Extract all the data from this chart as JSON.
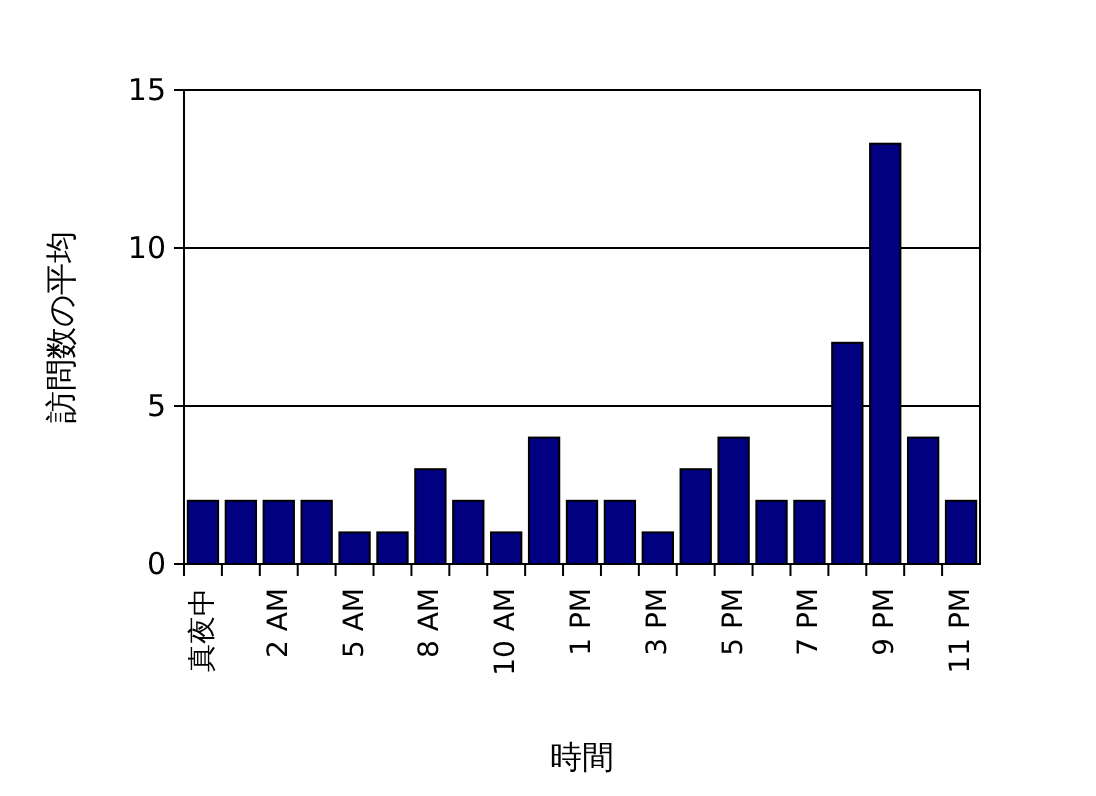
{
  "chart_data": {
    "type": "bar",
    "xlabel": "時間",
    "ylabel": "訪問数の平均",
    "categories": [
      "真夜中",
      null,
      "2 AM",
      null,
      "5 AM",
      null,
      "8 AM",
      null,
      "10 AM",
      null,
      "1 PM",
      null,
      "3 PM",
      null,
      "5 PM",
      null,
      "7 PM",
      null,
      "9 PM",
      null,
      "11 PM"
    ],
    "values": [
      2,
      2,
      2,
      2,
      1,
      1,
      3,
      2,
      1,
      4,
      2,
      2,
      1,
      3,
      4,
      2,
      2,
      7,
      13.3,
      4,
      2
    ],
    "color": "#000080",
    "ylim": [
      0,
      15
    ],
    "yticks": [
      0,
      5,
      10,
      15
    ],
    "grid": "y"
  }
}
